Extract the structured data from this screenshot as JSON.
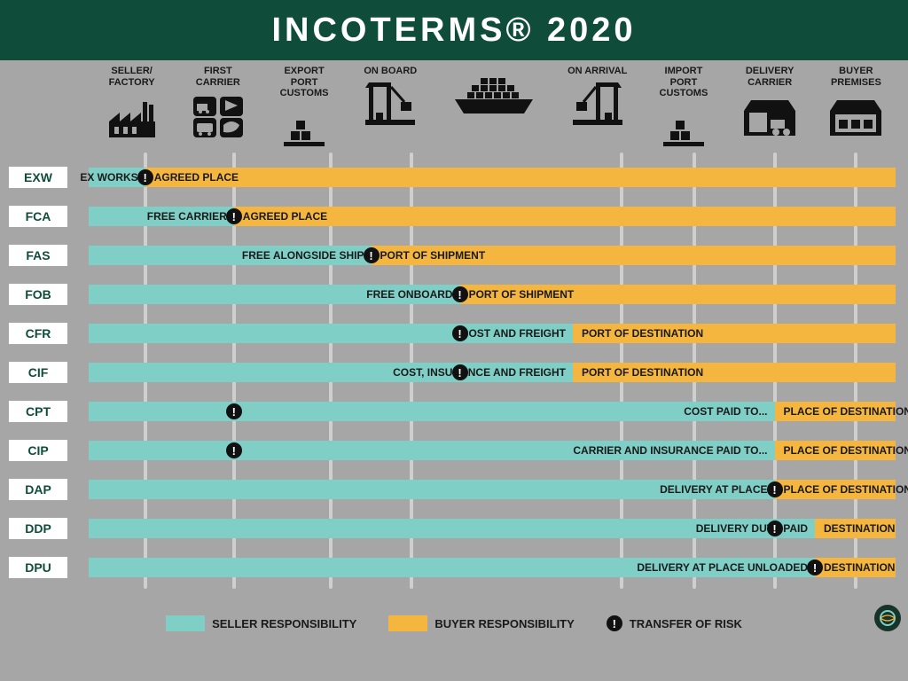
{
  "title": "INCOTERMS® 2020",
  "colors": {
    "header_bg": "#0f4d3a",
    "page_bg": "#a6a6a6",
    "seller": "#7fcfc6",
    "buyer": "#f4b63f",
    "vline": "#cfcfcf",
    "text_dark": "#1a1a1a",
    "badge_text": "#0f4d3a",
    "risk_dot": "#111111"
  },
  "stages": [
    {
      "key": "seller_factory",
      "label": "SELLER/\nFACTORY",
      "pct": 7
    },
    {
      "key": "first_carrier",
      "label": "FIRST\nCARRIER",
      "pct": 18
    },
    {
      "key": "export_customs",
      "label": "EXPORT\nPORT\nCUSTOMS",
      "pct": 30
    },
    {
      "key": "on_board",
      "label": "ON BOARD",
      "pct": 40
    },
    {
      "key": "ship",
      "label": "",
      "pct": 53
    },
    {
      "key": "on_arrival",
      "label": "ON ARRIVAL",
      "pct": 66
    },
    {
      "key": "import_customs",
      "label": "IMPORT\nPORT\nCUSTOMS",
      "pct": 75
    },
    {
      "key": "delivery_carrier",
      "label": "DELIVERY\nCARRIER",
      "pct": 85
    },
    {
      "key": "buyer_premises",
      "label": "BUYER\nPREMISES",
      "pct": 95
    }
  ],
  "terms": [
    {
      "code": "EXW",
      "seller_end": 7,
      "risk": 7,
      "seller_label": "EX WORKS",
      "buyer_label": "AGREED PLACE",
      "buyer_label_align": "left"
    },
    {
      "code": "FCA",
      "seller_end": 18,
      "risk": 18,
      "seller_label": "FREE CARRIER",
      "buyer_label": "AGREED PLACE",
      "buyer_label_align": "left"
    },
    {
      "code": "FAS",
      "seller_end": 35,
      "risk": 35,
      "seller_label": "FREE ALONGSIDE SHIP",
      "buyer_label": "PORT OF SHIPMENT",
      "buyer_label_align": "left"
    },
    {
      "code": "FOB",
      "seller_end": 46,
      "risk": 46,
      "seller_label": "FREE ONBOARD",
      "buyer_label": "PORT OF SHIPMENT",
      "buyer_label_align": "left"
    },
    {
      "code": "CFR",
      "seller_end": 60,
      "risk": 46,
      "seller_label": "COST AND FREIGHT",
      "buyer_label": "PORT OF DESTINATION",
      "buyer_label_align": "left"
    },
    {
      "code": "CIF",
      "seller_end": 60,
      "risk": 46,
      "seller_label": "COST, INSURANCE AND FREIGHT",
      "buyer_label": "PORT OF DESTINATION",
      "buyer_label_align": "left"
    },
    {
      "code": "CPT",
      "seller_end": 85,
      "risk": 18,
      "seller_label": "COST PAID TO...",
      "buyer_label": "PLACE OF DESTINATION",
      "buyer_label_align": "left"
    },
    {
      "code": "CIP",
      "seller_end": 85,
      "risk": 18,
      "seller_label": "CARRIER AND INSURANCE PAID TO...",
      "buyer_label": "PLACE OF DESTINATION",
      "buyer_label_align": "left"
    },
    {
      "code": "DAP",
      "seller_end": 85,
      "risk": 85,
      "seller_label": "DELIVERY AT PLACE",
      "buyer_label": "PLACE OF DESTINATION",
      "buyer_label_align": "left"
    },
    {
      "code": "DDP",
      "seller_end": 90,
      "risk": 85,
      "seller_label": "DELIVERY DUTY PAID",
      "buyer_label": "DESTINATION",
      "buyer_label_align": "left"
    },
    {
      "code": "DPU",
      "seller_end": 90,
      "risk": 90,
      "seller_label": "DELIVERY AT PLACE UNLOADED",
      "buyer_label": "DESTINATION",
      "buyer_label_align": "left"
    }
  ],
  "legend": {
    "seller": "SELLER RESPONSIBILITY",
    "buyer": "BUYER RESPONSIBILITY",
    "risk": "TRANSFER OF RISK"
  }
}
